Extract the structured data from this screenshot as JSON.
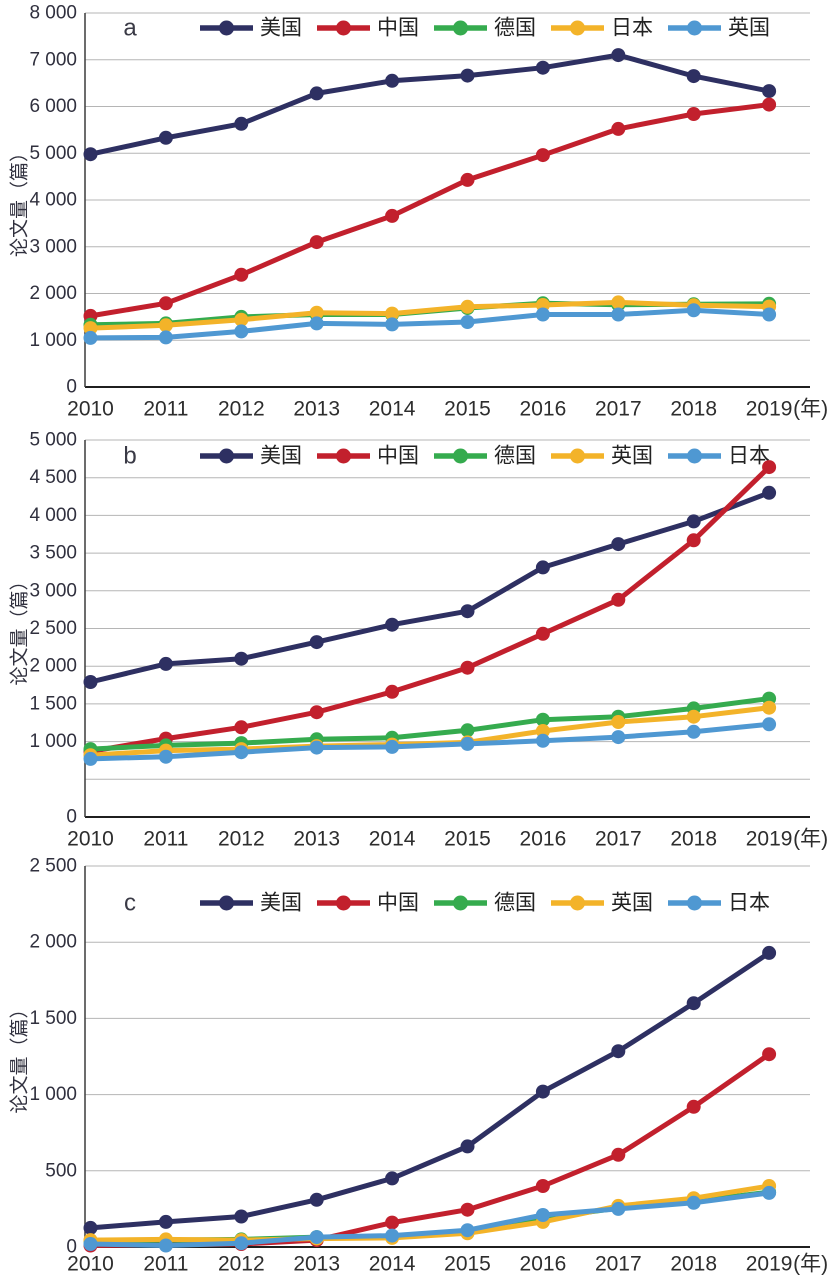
{
  "figure": {
    "ylabel": "论文量（篇）",
    "x_suffix": "(年)",
    "years": [
      "2010",
      "2011",
      "2012",
      "2013",
      "2014",
      "2015",
      "2016",
      "2017",
      "2018",
      "2019"
    ]
  },
  "chart_data": [
    {
      "type": "line",
      "panel_label": "a",
      "title": "",
      "xlabel": "(年)",
      "ylabel": "论文量（篇）",
      "x": [
        "2010",
        "2011",
        "2012",
        "2013",
        "2014",
        "2015",
        "2016",
        "2017",
        "2018",
        "2019"
      ],
      "ylim": [
        0,
        8000
      ],
      "grid": true,
      "legend_position": "top",
      "y_ticks": [
        {
          "v": 8000,
          "t": "8 000"
        },
        {
          "v": 7000,
          "t": "7 000"
        },
        {
          "v": 6000,
          "t": "6 000"
        },
        {
          "v": 5000,
          "t": "5 000"
        },
        {
          "v": 4000,
          "t": "4 000"
        },
        {
          "v": 3000,
          "t": "3 000"
        },
        {
          "v": 2000,
          "t": "2 000"
        },
        {
          "v": 1000,
          "t": "1 000"
        },
        {
          "v": 0,
          "t": "0"
        }
      ],
      "series": [
        {
          "id": "usa",
          "name": "美国",
          "color": "#2e3062",
          "values": [
            4980,
            5330,
            5630,
            6280,
            6550,
            6660,
            6830,
            7100,
            6650,
            6330
          ]
        },
        {
          "id": "china",
          "name": "中国",
          "color": "#c2202d",
          "values": [
            1520,
            1790,
            2400,
            3100,
            3660,
            4430,
            4960,
            5520,
            5840,
            6040
          ]
        },
        {
          "id": "germany",
          "name": "德国",
          "color": "#35ab4e",
          "values": [
            1330,
            1360,
            1500,
            1550,
            1550,
            1690,
            1790,
            1760,
            1770,
            1780
          ]
        },
        {
          "id": "japan",
          "name": "日本",
          "color": "#f3b329",
          "values": [
            1260,
            1320,
            1440,
            1590,
            1570,
            1715,
            1755,
            1810,
            1750,
            1720
          ]
        },
        {
          "id": "uk",
          "name": "英国",
          "color": "#4f98d2",
          "values": [
            1050,
            1060,
            1190,
            1360,
            1340,
            1390,
            1550,
            1550,
            1640,
            1550
          ]
        }
      ]
    },
    {
      "type": "line",
      "panel_label": "b",
      "title": "",
      "xlabel": "(年)",
      "ylabel": "论文量（篇）",
      "x": [
        "2010",
        "2011",
        "2012",
        "2013",
        "2014",
        "2015",
        "2016",
        "2017",
        "2018",
        "2019"
      ],
      "ylim": [
        0,
        5000
      ],
      "grid": true,
      "legend_position": "top",
      "y_ticks": [
        {
          "v": 5000,
          "t": "5 000"
        },
        {
          "v": 4500,
          "t": "4 500"
        },
        {
          "v": 4000,
          "t": "4 000"
        },
        {
          "v": 3500,
          "t": "3 500"
        },
        {
          "v": 3000,
          "t": "3 000"
        },
        {
          "v": 2500,
          "t": "2 500"
        },
        {
          "v": 2000,
          "t": "2 000"
        },
        {
          "v": 1500,
          "t": "1 500"
        },
        {
          "v": 1000,
          "t": "1 000"
        },
        {
          "v": 500,
          "t": ""
        },
        {
          "v": 0,
          "t": "0"
        }
      ],
      "series": [
        {
          "id": "usa",
          "name": "美国",
          "color": "#2e3062",
          "values": [
            1790,
            2030,
            2100,
            2320,
            2550,
            2730,
            3310,
            3620,
            3920,
            4300
          ]
        },
        {
          "id": "china",
          "name": "中国",
          "color": "#c2202d",
          "values": [
            870,
            1040,
            1190,
            1390,
            1660,
            1980,
            2430,
            2880,
            3670,
            4640
          ]
        },
        {
          "id": "germany",
          "name": "德国",
          "color": "#35ab4e",
          "values": [
            900,
            950,
            980,
            1030,
            1050,
            1150,
            1290,
            1330,
            1440,
            1570
          ]
        },
        {
          "id": "uk",
          "name": "英国",
          "color": "#f3b329",
          "values": [
            820,
            880,
            900,
            940,
            960,
            990,
            1140,
            1260,
            1330,
            1450
          ]
        },
        {
          "id": "japan",
          "name": "日本",
          "color": "#4f98d2",
          "values": [
            770,
            800,
            860,
            920,
            930,
            970,
            1010,
            1060,
            1130,
            1230
          ]
        }
      ]
    },
    {
      "type": "line",
      "panel_label": "c",
      "title": "",
      "xlabel": "(年)",
      "ylabel": "论文量（篇）",
      "x": [
        "2010",
        "2011",
        "2012",
        "2013",
        "2014",
        "2015",
        "2016",
        "2017",
        "2018",
        "2019"
      ],
      "ylim": [
        0,
        2500
      ],
      "grid": true,
      "legend_position": "top",
      "y_ticks": [
        {
          "v": 2500,
          "t": "2 500"
        },
        {
          "v": 2000,
          "t": "2 000"
        },
        {
          "v": 1500,
          "t": "1 500"
        },
        {
          "v": 1000,
          "t": "1 000"
        },
        {
          "v": 500,
          "t": "500"
        },
        {
          "v": 0,
          "t": "0"
        }
      ],
      "series": [
        {
          "id": "usa",
          "name": "美国",
          "color": "#2e3062",
          "values": [
            125,
            165,
            200,
            310,
            450,
            660,
            1020,
            1285,
            1600,
            1930
          ]
        },
        {
          "id": "china",
          "name": "中国",
          "color": "#c2202d",
          "values": [
            10,
            15,
            20,
            45,
            160,
            245,
            400,
            605,
            920,
            1265
          ]
        },
        {
          "id": "germany",
          "name": "德国",
          "color": "#35ab4e",
          "values": [
            40,
            45,
            50,
            65,
            70,
            100,
            190,
            255,
            300,
            360
          ]
        },
        {
          "id": "uk",
          "name": "英国",
          "color": "#f3b329",
          "values": [
            45,
            50,
            45,
            55,
            60,
            90,
            165,
            270,
            320,
            400
          ]
        },
        {
          "id": "japan",
          "name": "日本",
          "color": "#4f98d2",
          "values": [
            20,
            10,
            25,
            65,
            75,
            110,
            210,
            250,
            290,
            355
          ]
        }
      ]
    }
  ]
}
